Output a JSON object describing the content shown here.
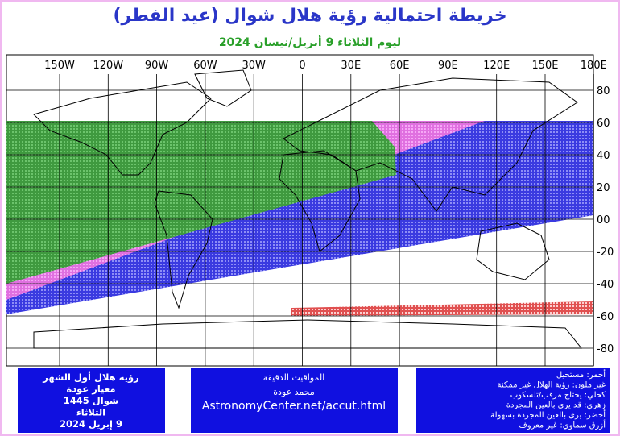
{
  "title": "خريطة احتمالية رؤية هلال شوال (عيد الفطر)",
  "subtitle": "ليوم الثلاثاء 9 أبريل/نيسان 2024",
  "map": {
    "lon_labels": [
      "150W",
      "120W",
      "90W",
      "60W",
      "30W",
      "0",
      "30E",
      "60E",
      "90E",
      "120E",
      "150E",
      "180E"
    ],
    "lat_labels": [
      "80",
      "60",
      "40",
      "20",
      "00",
      "-20",
      "-40",
      "-60",
      "-80"
    ]
  },
  "panels": {
    "left": [
      "رؤية هلال أول الشهر",
      "معيار عودة",
      "شوال 1445",
      "الثلاثاء",
      "9 إبريل 2024"
    ],
    "center": [
      "المواقيت الدقيقة",
      "محمد عودة",
      "AstronomyCenter.net/accut.html"
    ],
    "right": [
      "أحمر: مستحيل",
      "غير ملون: رؤية الهلال غير ممكنة",
      "كحلي: يحتاج مرقب/تلسكوب",
      "زهري: قد يرى بالعين المجردة",
      "أخضر: يرى بالعين المجردة بسهولة",
      "أزرق سماوي: غير معروف"
    ]
  }
}
